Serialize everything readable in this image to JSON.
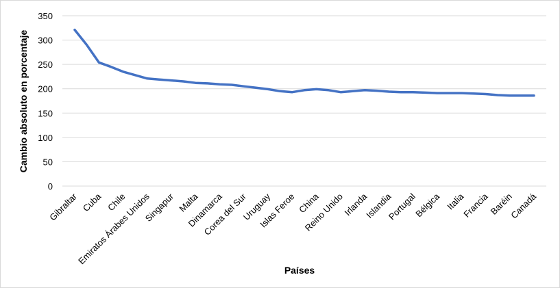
{
  "chart_data": {
    "type": "line",
    "title": "",
    "xlabel": "Países",
    "ylabel": "Cambio absoluto en porcentaje",
    "ylim": [
      0,
      350
    ],
    "yticks": [
      0,
      50,
      100,
      150,
      200,
      250,
      300,
      350
    ],
    "grid": true,
    "legend": "none",
    "categories": [
      "Gibraltar",
      "",
      "Cuba",
      "",
      "Chile",
      "",
      "Emiratos Árabes Unidos",
      "",
      "Singapur",
      "",
      "Malta",
      "",
      "Dinamarca",
      "",
      "Corea del Sur",
      "",
      "Uruguay",
      "",
      "Islas Feroe",
      "",
      "China",
      "",
      "Reino Unido",
      "",
      "Irlanda",
      "",
      "Islandia",
      "",
      "Portugal",
      "",
      "Bélgica",
      "",
      "Italia",
      "",
      "Francia",
      "",
      "Baréin",
      "",
      "Canadá"
    ],
    "series": [
      {
        "color": "#4472c4",
        "values": [
          321,
          290,
          254,
          245,
          235,
          228,
          221,
          219,
          217,
          215,
          212,
          211,
          209,
          208,
          205,
          202,
          199,
          195,
          193,
          197,
          199,
          197,
          193,
          195,
          197,
          196,
          194,
          193,
          193,
          192,
          191,
          191,
          191,
          190,
          189,
          187,
          186,
          186,
          186
        ]
      }
    ]
  }
}
